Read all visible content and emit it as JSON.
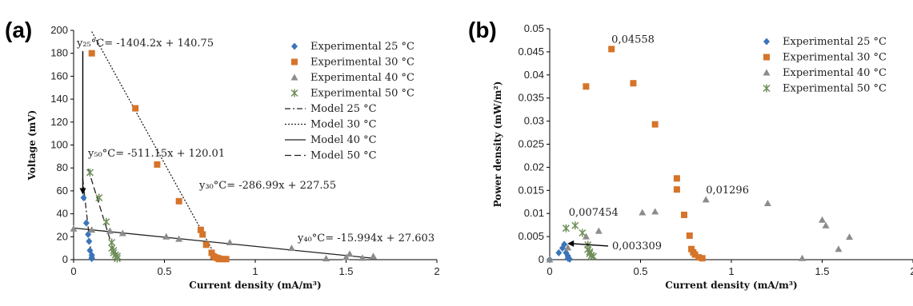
{
  "panels": [
    {
      "label": "(a)"
    },
    {
      "label": "(b)"
    }
  ],
  "chart_data": [
    {
      "type": "scatter",
      "panel": "(a)",
      "xlabel": "Current density (mA/m³)",
      "ylabel": "Voltage (mV)",
      "xlim": [
        0,
        2
      ],
      "ylim": [
        0,
        200
      ],
      "xticks": [
        "0",
        "0.5",
        "1",
        "1.5",
        "2"
      ],
      "yticks": [
        "0",
        "20",
        "40",
        "60",
        "80",
        "100",
        "120",
        "140",
        "160",
        "180",
        "200"
      ],
      "series": [
        {
          "name": "Experimental 25 °C",
          "marker": "diamond",
          "color": "#3b74b8",
          "x": [
            0.055,
            0.07,
            0.08,
            0.085,
            0.09,
            0.1,
            0.1,
            0.1
          ],
          "y": [
            54,
            32,
            22,
            16,
            8,
            4,
            2,
            1
          ]
        },
        {
          "name": "Experimental 30 °C",
          "marker": "square",
          "color": "#d5742a",
          "x": [
            0.1,
            0.34,
            0.46,
            0.58,
            0.7,
            0.71,
            0.73,
            0.76,
            0.77,
            0.78,
            0.79,
            0.8,
            0.8,
            0.82,
            0.84
          ],
          "y": [
            180,
            132,
            83,
            51,
            26,
            22,
            13,
            6,
            3,
            2,
            1.5,
            1,
            0.5,
            0.5,
            0.5
          ]
        },
        {
          "name": "Experimental 40 °C",
          "marker": "triangle",
          "color": "#8c8c8c",
          "x": [
            0.0,
            0.1,
            0.2,
            0.27,
            0.51,
            0.58,
            0.86,
            1.2,
            1.39,
            1.5,
            1.52,
            1.59,
            1.65
          ],
          "y": [
            27,
            26,
            25,
            23,
            20,
            18,
            15,
            10,
            1,
            2,
            5,
            1.5,
            3
          ]
        },
        {
          "name": "Experimental 50 °C",
          "marker": "star",
          "color": "#6f8f5a",
          "x": [
            0.09,
            0.14,
            0.18,
            0.21,
            0.21,
            0.22,
            0.22,
            0.23,
            0.24,
            0.24
          ],
          "y": [
            76,
            54,
            33,
            15,
            10,
            8,
            6,
            4,
            3,
            1
          ]
        },
        {
          "name": "Model 25 °C",
          "style": "dashdot",
          "x": [
            0.05,
            0.1
          ],
          "y": [
            70.5,
            0.3
          ]
        },
        {
          "name": "Model 30 °C",
          "style": "dotted",
          "x": [
            0.1,
            0.79
          ],
          "y": [
            198.9,
            0.8
          ]
        },
        {
          "name": "Model 40 °C",
          "style": "solid",
          "x": [
            0.0,
            1.65
          ],
          "y": [
            27.6,
            1.2
          ]
        },
        {
          "name": "Model 50 °C",
          "style": "dashed",
          "x": [
            0.08,
            0.235
          ],
          "y": [
            79.1,
            0.0
          ]
        }
      ],
      "equations": [
        {
          "text": "y₂₅°C= -1404.2x + 140.75"
        },
        {
          "text": "y₅₀°C= -511.15x + 120.01"
        },
        {
          "text": "y₃₀°C= -286.99x + 227.55"
        },
        {
          "text": "y₄₀°C= -15.994x + 27.603"
        }
      ]
    },
    {
      "type": "scatter",
      "panel": "(b)",
      "xlabel": "Current density (mA/m³)",
      "ylabel": "Power density (mW/m²)",
      "xlim": [
        0,
        2
      ],
      "ylim": [
        0,
        0.05
      ],
      "xticks": [
        "0",
        "0.5",
        "1",
        "1.5",
        "2"
      ],
      "yticks": [
        "0",
        "0.005",
        "0.01",
        "0.015",
        "0.02",
        "0.025",
        "0.03",
        "0.035",
        "0.04",
        "0.045",
        "0.05"
      ],
      "series": [
        {
          "name": "Experimental 25 °C",
          "marker": "diamond",
          "color": "#3b74b8",
          "x": [
            0.0,
            0.05,
            0.07,
            0.08,
            0.09,
            0.1,
            0.1,
            0.11
          ],
          "y": [
            0.0,
            0.0015,
            0.0025,
            0.0033,
            0.0015,
            0.0008,
            0.0003,
            0.0001
          ]
        },
        {
          "name": "Experimental 30 °C",
          "marker": "square",
          "color": "#d5742a",
          "x": [
            0.2,
            0.34,
            0.46,
            0.58,
            0.7,
            0.7,
            0.74,
            0.77,
            0.78,
            0.79,
            0.8,
            0.82,
            0.84
          ],
          "y": [
            0.0375,
            0.0456,
            0.0382,
            0.0293,
            0.0176,
            0.0152,
            0.0097,
            0.0052,
            0.0023,
            0.0016,
            0.0011,
            0.0005,
            0.0003
          ]
        },
        {
          "name": "Experimental 40 °C",
          "marker": "triangle",
          "color": "#8c8c8c",
          "x": [
            0.0,
            0.1,
            0.2,
            0.27,
            0.51,
            0.58,
            0.86,
            1.2,
            1.39,
            1.5,
            1.52,
            1.59,
            1.65
          ],
          "y": [
            0.0,
            0.0026,
            0.005,
            0.0062,
            0.0102,
            0.0104,
            0.013,
            0.0122,
            0.0003,
            0.0086,
            0.0074,
            0.0023,
            0.0049
          ]
        },
        {
          "name": "Experimental 50 °C",
          "marker": "star",
          "color": "#6f8f5a",
          "x": [
            0.09,
            0.14,
            0.18,
            0.21,
            0.21,
            0.22,
            0.22,
            0.23,
            0.24
          ],
          "y": [
            0.0068,
            0.0074,
            0.0058,
            0.0032,
            0.0022,
            0.0017,
            0.0013,
            0.0009,
            0.0007
          ]
        }
      ],
      "annotations": [
        {
          "text": "0,04558",
          "x": 0.34,
          "y": 0.0456
        },
        {
          "text": "0,01296",
          "x": 0.86,
          "y": 0.013
        },
        {
          "text": "0,007454",
          "x": 0.14,
          "y": 0.0074
        },
        {
          "text": "0,003309",
          "x": 0.08,
          "y": 0.0033
        }
      ]
    }
  ]
}
